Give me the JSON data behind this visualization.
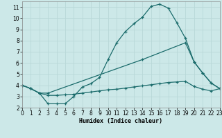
{
  "bg_color": "#cce8e8",
  "grid_color": "#b8d8d8",
  "line_color": "#1a6b6b",
  "xlabel": "Humidex (Indice chaleur)",
  "xlim": [
    0,
    23
  ],
  "ylim": [
    2,
    11.5
  ],
  "xticks": [
    0,
    1,
    2,
    3,
    4,
    5,
    6,
    7,
    8,
    9,
    10,
    11,
    12,
    13,
    14,
    15,
    16,
    17,
    18,
    19,
    20,
    21,
    22,
    23
  ],
  "yticks": [
    2,
    3,
    4,
    5,
    6,
    7,
    8,
    9,
    10,
    11
  ],
  "curve1_x": [
    0,
    1,
    2,
    3,
    4,
    5,
    6,
    7,
    8,
    9,
    10,
    11,
    12,
    13,
    14,
    15,
    16,
    17,
    18,
    19,
    20,
    21,
    22,
    23
  ],
  "curve1_y": [
    4.0,
    3.7,
    3.3,
    2.35,
    2.35,
    2.35,
    3.0,
    3.85,
    4.15,
    4.7,
    6.3,
    7.8,
    8.8,
    9.5,
    10.1,
    11.05,
    11.25,
    10.9,
    9.6,
    8.2,
    6.1,
    5.1,
    4.2,
    3.7
  ],
  "curve2_x": [
    0,
    1,
    2,
    3,
    14,
    19,
    20,
    21,
    22,
    23
  ],
  "curve2_y": [
    4.0,
    3.7,
    3.3,
    3.3,
    6.3,
    7.8,
    6.1,
    5.1,
    4.2,
    3.7
  ],
  "curve3_x": [
    0,
    1,
    2,
    3,
    4,
    5,
    6,
    7,
    8,
    9,
    10,
    11,
    12,
    13,
    14,
    15,
    16,
    17,
    18,
    19,
    20,
    21,
    22,
    23
  ],
  "curve3_y": [
    4.0,
    3.7,
    3.3,
    3.1,
    3.1,
    3.15,
    3.2,
    3.3,
    3.4,
    3.5,
    3.6,
    3.65,
    3.75,
    3.85,
    3.95,
    4.05,
    4.15,
    4.25,
    4.3,
    4.35,
    3.9,
    3.65,
    3.5,
    3.7
  ],
  "marker": "+",
  "markersize": 3.5,
  "markeredgewidth": 0.9,
  "linewidth": 0.9,
  "tick_fontsize": 5.5,
  "xlabel_fontsize": 6.0
}
